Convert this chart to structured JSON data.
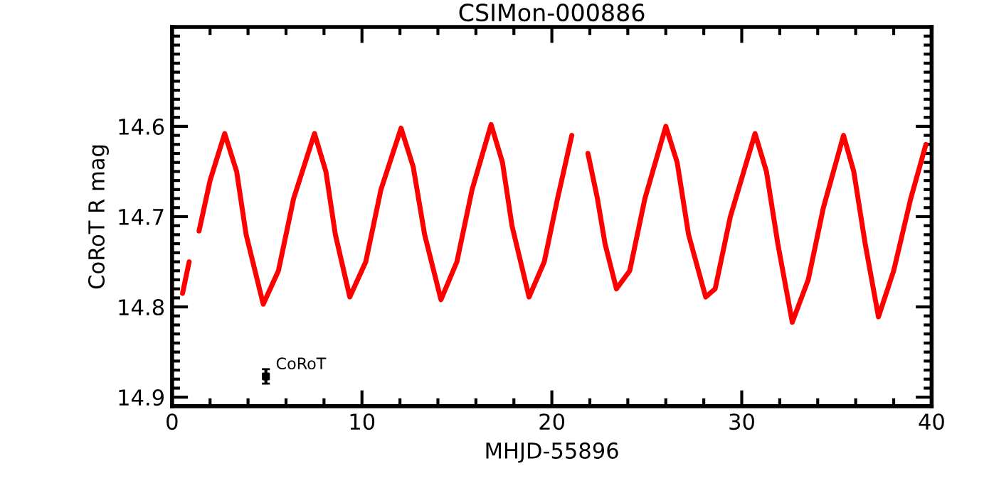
{
  "chart_data": {
    "type": "line",
    "title": "CSIMon-000886",
    "xlabel": "MHJD-55896",
    "ylabel": "CoRoT R mag",
    "xlim": [
      0,
      40
    ],
    "xticks": [
      0,
      10,
      20,
      30,
      40
    ],
    "ylim": [
      14.91,
      14.49
    ],
    "yticks": [
      14.6,
      14.7,
      14.8,
      14.9
    ],
    "grid": false,
    "legend": false,
    "series": [
      {
        "color": "#ff0000",
        "marker": "none",
        "line_style": "solid",
        "x": [
          0.55,
          0.9,
          1.1,
          1.42,
          2.0,
          2.77,
          3.4,
          3.9,
          4.8,
          5.6,
          6.4,
          7.5,
          8.1,
          8.6,
          9.36,
          10.2,
          11.0,
          12.06,
          12.7,
          13.3,
          14.16,
          15.0,
          15.8,
          16.8,
          17.4,
          17.9,
          18.8,
          19.6,
          20.3,
          21.05,
          21.5,
          21.9,
          22.4,
          22.8,
          23.4,
          24.1,
          24.9,
          26.0,
          26.6,
          27.2,
          28.1,
          28.6,
          29.4,
          30.7,
          31.3,
          31.9,
          32.66,
          33.5,
          34.3,
          35.36,
          35.9,
          36.5,
          37.2,
          38.0,
          38.9,
          39.7
        ],
        "values": [
          14.785,
          14.75,
          null,
          14.716,
          14.66,
          14.608,
          14.65,
          14.72,
          14.797,
          14.76,
          14.68,
          14.608,
          14.65,
          14.72,
          14.789,
          14.75,
          14.67,
          14.602,
          14.645,
          14.72,
          14.792,
          14.75,
          14.67,
          14.598,
          14.64,
          14.71,
          14.789,
          14.75,
          14.68,
          14.61,
          null,
          14.63,
          14.68,
          14.73,
          14.78,
          14.76,
          14.68,
          14.6,
          14.64,
          14.72,
          14.789,
          14.78,
          14.7,
          14.608,
          14.65,
          14.73,
          14.817,
          14.77,
          14.69,
          14.61,
          14.65,
          14.73,
          14.811,
          14.76,
          14.68,
          14.62
        ]
      },
      {
        "type": "scatter",
        "color": "#000000",
        "marker": "square",
        "x": [
          4.94
        ],
        "values": [
          14.877
        ],
        "errors": [
          0.008
        ]
      }
    ],
    "annotations": [
      {
        "text": "CoRoT",
        "x": 4.94,
        "y": 14.877
      }
    ]
  }
}
